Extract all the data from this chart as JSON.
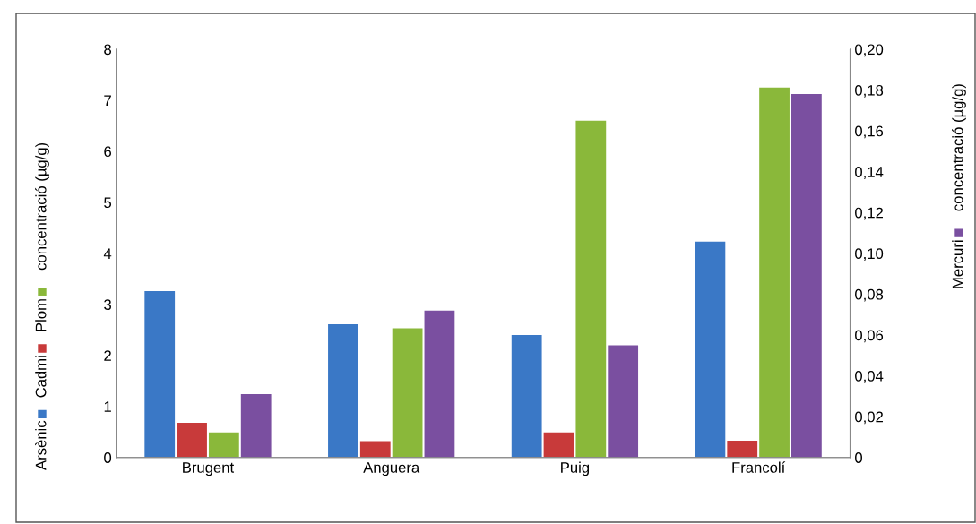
{
  "chart_data": {
    "type": "bar",
    "categories": [
      "Brugent",
      "Anguera",
      "Puig",
      "Francolí"
    ],
    "ylabel": "concentració (µg/g)",
    "y2label": "concentració (µg/g)",
    "series": [
      {
        "name": "Arsènic",
        "color": "#3a78c6",
        "values": [
          3.26,
          2.61,
          2.4,
          4.23
        ]
      },
      {
        "name": "Cadmi",
        "color": "#c83a3a",
        "values": [
          0.68,
          0.32,
          0.49,
          0.33
        ]
      },
      {
        "name": "Plom",
        "color": "#8ab83a",
        "values": [
          0.49,
          2.53,
          6.6,
          7.25
        ]
      },
      {
        "name": "Mercuri",
        "color": "#7a4fa0",
        "values": [
          0.031,
          0.072,
          0.055,
          0.178
        ],
        "axis": "y2"
      }
    ],
    "ylim": [
      0,
      8
    ],
    "yticks": [
      0,
      1,
      2,
      3,
      4,
      5,
      6,
      7,
      8
    ],
    "y2lim": [
      0,
      0.2
    ],
    "y2ticks": [
      0,
      {
        "value": 0.02,
        "label": "0,02"
      },
      {
        "value": 0.04,
        "label": "0,04"
      },
      {
        "value": 0.06,
        "label": "0,06"
      },
      {
        "value": 0.08,
        "label": "0,08"
      },
      {
        "value": 0.1,
        "label": "0,10"
      },
      {
        "value": 0.12,
        "label": "0,12"
      },
      {
        "value": 0.14,
        "label": "0,14"
      },
      {
        "value": 0.16,
        "label": "0,16"
      },
      {
        "value": 0.18,
        "label": "0,18"
      },
      {
        "value": 0.2,
        "label": "0,20"
      }
    ],
    "legend": "left",
    "grid": false
  }
}
